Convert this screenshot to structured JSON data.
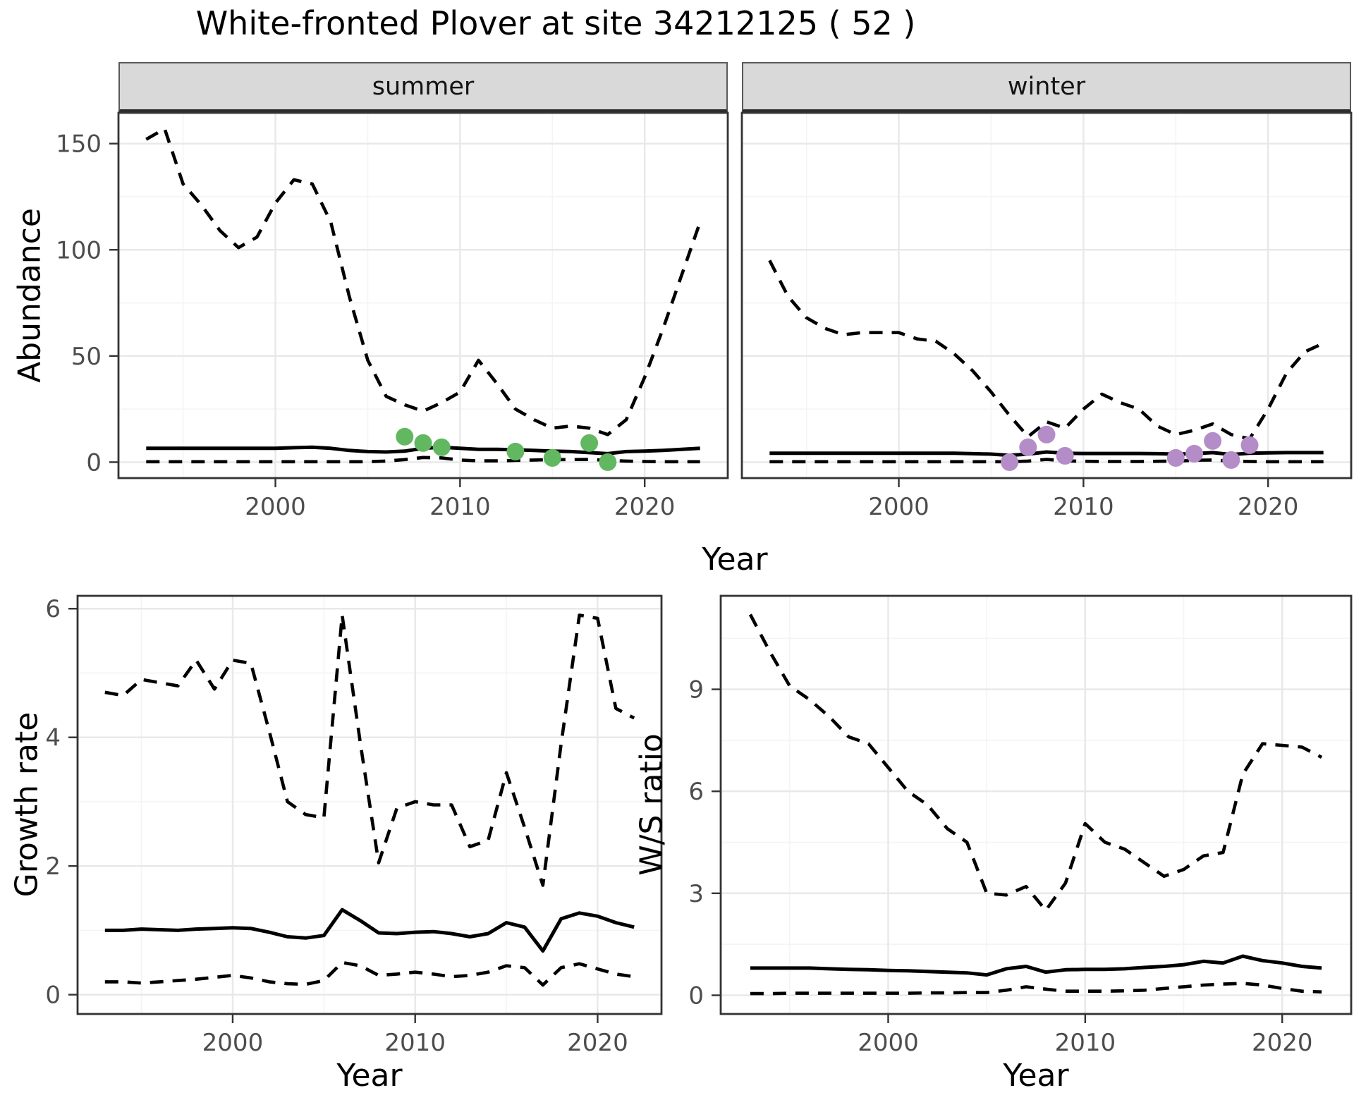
{
  "title": "White-fronted Plover at site 34212125 ( 52 )",
  "axes": {
    "x": "Year",
    "abundance": "Abundance",
    "growth": "Growth rate",
    "ws": "W/S ratio"
  },
  "colors": {
    "line": "#000000",
    "summer_point": "#61b861",
    "winter_point": "#b48cc8",
    "strip_bg": "#d9d9d9",
    "panel_border": "#333333",
    "grid_major": "#e8e8e8",
    "grid_minor": "#f4f4f4",
    "axis_text": "#4d4d4d"
  },
  "chart_data": [
    {
      "id": "abundance-summer",
      "type": "line",
      "facet": "summer",
      "xlabel": "Year",
      "ylabel": "Abundance",
      "xlim": [
        1991.5,
        2024.5
      ],
      "ylim": [
        -7.5,
        164.5
      ],
      "xticks": [
        2000,
        2010,
        2020
      ],
      "yticks": [
        0,
        50,
        100,
        150
      ],
      "xminor": [
        1995,
        2005,
        2015
      ],
      "yminor": [
        25,
        75,
        125
      ],
      "x": [
        1993,
        1994,
        1995,
        1996,
        1997,
        1998,
        1999,
        2000,
        2001,
        2002,
        2003,
        2004,
        2005,
        2006,
        2007,
        2008,
        2009,
        2010,
        2011,
        2012,
        2013,
        2014,
        2015,
        2016,
        2017,
        2018,
        2019,
        2020,
        2021,
        2022,
        2023
      ],
      "series": [
        {
          "name": "upper-ci-dashed",
          "style": "dashed",
          "values": [
            152,
            157,
            131,
            121,
            109,
            101,
            106,
            122,
            133,
            131,
            113,
            78,
            48,
            31,
            27,
            24,
            28,
            33,
            48,
            37,
            25,
            20,
            16,
            17,
            16,
            13,
            20,
            40,
            63,
            88,
            113
          ]
        },
        {
          "name": "median-solid",
          "style": "solid",
          "values": [
            6.5,
            6.5,
            6.5,
            6.5,
            6.5,
            6.5,
            6.5,
            6.5,
            6.8,
            7.0,
            6.5,
            5.5,
            5.0,
            4.8,
            5.2,
            6.5,
            7.0,
            6.5,
            6.0,
            6.0,
            5.8,
            5.5,
            5.2,
            5.0,
            4.5,
            4.0,
            5.0,
            5.2,
            5.5,
            6.0,
            6.5
          ]
        },
        {
          "name": "lower-ci-dashed",
          "style": "dashed",
          "values": [
            0.2,
            0.2,
            0.2,
            0.2,
            0.2,
            0.2,
            0.2,
            0.2,
            0.2,
            0.2,
            0.2,
            0.2,
            0.2,
            0.5,
            1.2,
            2.2,
            2.0,
            1.0,
            0.6,
            0.6,
            0.8,
            1.0,
            1.2,
            1.2,
            1.3,
            0.8,
            0.5,
            0.3,
            0.2,
            0.2,
            0.2
          ]
        }
      ],
      "points": {
        "name": "observed-summer-counts",
        "color": "#61b861",
        "x": [
          2007,
          2008,
          2009,
          2013,
          2015,
          2017,
          2018
        ],
        "y": [
          12,
          9,
          7,
          5,
          2,
          9,
          0
        ]
      }
    },
    {
      "id": "abundance-winter",
      "type": "line",
      "facet": "winter",
      "xlabel": "Year",
      "ylabel": "Abundance",
      "xlim": [
        1991.5,
        2024.5
      ],
      "ylim": [
        -7.5,
        164.5
      ],
      "xticks": [
        2000,
        2010,
        2020
      ],
      "yticks": [
        0,
        50,
        100,
        150
      ],
      "xminor": [
        1995,
        2005,
        2015
      ],
      "yminor": [
        25,
        75,
        125
      ],
      "x": [
        1993,
        1994,
        1995,
        1996,
        1997,
        1998,
        1999,
        2000,
        2001,
        2002,
        2003,
        2004,
        2005,
        2006,
        2007,
        2008,
        2009,
        2010,
        2011,
        2012,
        2013,
        2014,
        2015,
        2016,
        2017,
        2018,
        2019,
        2020,
        2021,
        2022,
        2023
      ],
      "series": [
        {
          "name": "upper-ci-dashed",
          "style": "dashed",
          "values": [
            95,
            78,
            68,
            63,
            60,
            61,
            61,
            61,
            58,
            57,
            51,
            43,
            33,
            22,
            12,
            19,
            16,
            25,
            32,
            28,
            25,
            17,
            13,
            15,
            18,
            13,
            11,
            25,
            42,
            52,
            56
          ]
        },
        {
          "name": "median-solid",
          "style": "solid",
          "values": [
            4.2,
            4.2,
            4.2,
            4.2,
            4.2,
            4.2,
            4.2,
            4.2,
            4.2,
            4.2,
            4.2,
            4.0,
            3.8,
            3.2,
            3.8,
            4.8,
            4.2,
            4.1,
            4.1,
            4.1,
            4.1,
            4.0,
            3.8,
            4.0,
            4.5,
            3.6,
            4.2,
            4.4,
            4.5,
            4.5,
            4.5
          ]
        },
        {
          "name": "lower-ci-dashed",
          "style": "dashed",
          "values": [
            0.2,
            0.2,
            0.2,
            0.2,
            0.2,
            0.2,
            0.2,
            0.2,
            0.2,
            0.2,
            0.2,
            0.2,
            0.2,
            0.2,
            0.5,
            1.3,
            0.6,
            0.4,
            0.3,
            0.3,
            0.3,
            0.4,
            0.5,
            0.9,
            1.0,
            0.5,
            0.3,
            0.2,
            0.2,
            0.2,
            0.2
          ]
        }
      ],
      "points": {
        "name": "observed-winter-counts",
        "color": "#b48cc8",
        "x": [
          2006,
          2007,
          2008,
          2009,
          2015,
          2016,
          2017,
          2018,
          2019
        ],
        "y": [
          0,
          7,
          13,
          3,
          2,
          4,
          10,
          1,
          8
        ]
      }
    },
    {
      "id": "growth-rate",
      "type": "line",
      "xlabel": "Year",
      "ylabel": "Growth rate",
      "xlim": [
        1991.5,
        2023.5
      ],
      "ylim": [
        -0.3,
        6.2
      ],
      "xticks": [
        2000,
        2010,
        2020
      ],
      "yticks": [
        0,
        2,
        4,
        6
      ],
      "xminor": [
        1995,
        2005,
        2015
      ],
      "yminor": [
        1,
        3,
        5
      ],
      "x": [
        1993,
        1994,
        1995,
        1996,
        1997,
        1998,
        1999,
        2000,
        2001,
        2002,
        2003,
        2004,
        2005,
        2006,
        2007,
        2008,
        2009,
        2010,
        2011,
        2012,
        2013,
        2014,
        2015,
        2016,
        2017,
        2018,
        2019,
        2020,
        2021,
        2022
      ],
      "series": [
        {
          "name": "upper-ci-dashed",
          "style": "dashed",
          "values": [
            4.7,
            4.65,
            4.9,
            4.85,
            4.8,
            5.2,
            4.75,
            5.2,
            5.15,
            4.1,
            3.0,
            2.8,
            2.75,
            5.9,
            3.9,
            2.05,
            2.9,
            3.0,
            2.95,
            2.95,
            2.3,
            2.4,
            3.45,
            2.6,
            1.7,
            3.9,
            5.9,
            5.85,
            4.45,
            4.3
          ]
        },
        {
          "name": "median-solid",
          "style": "solid",
          "values": [
            1.0,
            1.0,
            1.02,
            1.01,
            1.0,
            1.02,
            1.03,
            1.04,
            1.03,
            0.97,
            0.9,
            0.88,
            0.92,
            1.32,
            1.15,
            0.96,
            0.95,
            0.97,
            0.98,
            0.95,
            0.9,
            0.95,
            1.12,
            1.05,
            0.68,
            1.18,
            1.27,
            1.22,
            1.12,
            1.05
          ]
        },
        {
          "name": "lower-ci-dashed",
          "style": "dashed",
          "values": [
            0.2,
            0.2,
            0.18,
            0.2,
            0.22,
            0.24,
            0.27,
            0.3,
            0.26,
            0.2,
            0.17,
            0.16,
            0.22,
            0.5,
            0.45,
            0.3,
            0.32,
            0.35,
            0.32,
            0.28,
            0.3,
            0.35,
            0.45,
            0.42,
            0.15,
            0.42,
            0.48,
            0.4,
            0.32,
            0.28
          ]
        }
      ]
    },
    {
      "id": "ws-ratio",
      "type": "line",
      "xlabel": "Year",
      "ylabel": "W/S ratio",
      "xlim": [
        1991.5,
        2023.5
      ],
      "ylim": [
        -0.55,
        11.75
      ],
      "xticks": [
        2000,
        2010,
        2020
      ],
      "yticks": [
        0,
        3,
        6,
        9
      ],
      "xminor": [
        1995,
        2005,
        2015
      ],
      "yminor": [
        1.5,
        4.5,
        7.5,
        10.5
      ],
      "x": [
        1993,
        1994,
        1995,
        1996,
        1997,
        1998,
        1999,
        2000,
        2001,
        2002,
        2003,
        2004,
        2005,
        2006,
        2007,
        2008,
        2009,
        2010,
        2011,
        2012,
        2013,
        2014,
        2015,
        2016,
        2017,
        2018,
        2019,
        2020,
        2021,
        2022
      ],
      "series": [
        {
          "name": "upper-ci-dashed",
          "style": "dashed",
          "values": [
            11.2,
            10.1,
            9.1,
            8.7,
            8.2,
            7.6,
            7.4,
            6.7,
            6.0,
            5.6,
            4.9,
            4.5,
            3.0,
            2.95,
            3.2,
            2.5,
            3.3,
            5.05,
            4.5,
            4.3,
            3.9,
            3.5,
            3.7,
            4.1,
            4.2,
            6.5,
            7.4,
            7.35,
            7.3,
            7.0
          ]
        },
        {
          "name": "median-solid",
          "style": "solid",
          "values": [
            0.8,
            0.8,
            0.8,
            0.8,
            0.78,
            0.76,
            0.75,
            0.73,
            0.72,
            0.7,
            0.68,
            0.66,
            0.6,
            0.78,
            0.85,
            0.68,
            0.75,
            0.76,
            0.76,
            0.78,
            0.82,
            0.85,
            0.9,
            1.0,
            0.95,
            1.15,
            1.02,
            0.95,
            0.85,
            0.8
          ]
        },
        {
          "name": "lower-ci-dashed",
          "style": "dashed",
          "values": [
            0.05,
            0.05,
            0.06,
            0.06,
            0.06,
            0.06,
            0.06,
            0.06,
            0.06,
            0.07,
            0.07,
            0.08,
            0.08,
            0.15,
            0.25,
            0.18,
            0.12,
            0.12,
            0.12,
            0.13,
            0.15,
            0.2,
            0.25,
            0.3,
            0.33,
            0.35,
            0.3,
            0.2,
            0.12,
            0.1
          ]
        }
      ]
    }
  ]
}
